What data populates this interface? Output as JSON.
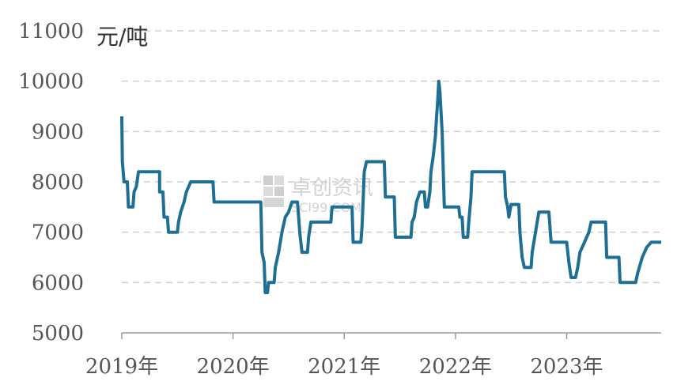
{
  "chart_data": {
    "type": "line",
    "unit_label": "元/吨",
    "watermark": {
      "line1": "卓创资讯",
      "line2": "SCI99.COM"
    },
    "ylim": [
      5000,
      11000
    ],
    "yticks": [
      5000,
      6000,
      7000,
      8000,
      9000,
      10000,
      11000
    ],
    "x_tick_labels": [
      "2019年",
      "2020年",
      "2021年",
      "2022年",
      "2023年"
    ],
    "xlim": [
      2019.0,
      2023.85
    ],
    "grid": true,
    "series": [
      {
        "color": "#1e6f93",
        "points": [
          [
            2019.0,
            9300
          ],
          [
            2019.005,
            8400
          ],
          [
            2019.02,
            8000
          ],
          [
            2019.05,
            8000
          ],
          [
            2019.06,
            7500
          ],
          [
            2019.1,
            7500
          ],
          [
            2019.11,
            7800
          ],
          [
            2019.13,
            7900
          ],
          [
            2019.15,
            8200
          ],
          [
            2019.34,
            8200
          ],
          [
            2019.34,
            7800
          ],
          [
            2019.37,
            7800
          ],
          [
            2019.38,
            7300
          ],
          [
            2019.41,
            7300
          ],
          [
            2019.42,
            7000
          ],
          [
            2019.5,
            7000
          ],
          [
            2019.51,
            7200
          ],
          [
            2019.53,
            7400
          ],
          [
            2019.56,
            7600
          ],
          [
            2019.58,
            7800
          ],
          [
            2019.62,
            8000
          ],
          [
            2019.82,
            8000
          ],
          [
            2019.83,
            7600
          ],
          [
            2020.25,
            7600
          ],
          [
            2020.26,
            6600
          ],
          [
            2020.28,
            6400
          ],
          [
            2020.29,
            5800
          ],
          [
            2020.31,
            5800
          ],
          [
            2020.32,
            6000
          ],
          [
            2020.37,
            6000
          ],
          [
            2020.38,
            6300
          ],
          [
            2020.41,
            6600
          ],
          [
            2020.44,
            7000
          ],
          [
            2020.47,
            7300
          ],
          [
            2020.5,
            7400
          ],
          [
            2020.53,
            7600
          ],
          [
            2020.58,
            7600
          ],
          [
            2020.6,
            7000
          ],
          [
            2020.62,
            6600
          ],
          [
            2020.67,
            6600
          ],
          [
            2020.68,
            6900
          ],
          [
            2020.7,
            7200
          ],
          [
            2020.88,
            7200
          ],
          [
            2020.89,
            7500
          ],
          [
            2021.07,
            7500
          ],
          [
            2021.08,
            6800
          ],
          [
            2021.15,
            6800
          ],
          [
            2021.16,
            7100
          ],
          [
            2021.17,
            7600
          ],
          [
            2021.18,
            8200
          ],
          [
            2021.2,
            8400
          ],
          [
            2021.36,
            8400
          ],
          [
            2021.37,
            7700
          ],
          [
            2021.45,
            7700
          ],
          [
            2021.46,
            6900
          ],
          [
            2021.6,
            6900
          ],
          [
            2021.61,
            7200
          ],
          [
            2021.63,
            7300
          ],
          [
            2021.65,
            7600
          ],
          [
            2021.68,
            7800
          ],
          [
            2021.72,
            7800
          ],
          [
            2021.73,
            7500
          ],
          [
            2021.75,
            7500
          ],
          [
            2021.77,
            7800
          ],
          [
            2021.78,
            8200
          ],
          [
            2021.8,
            8500
          ],
          [
            2021.82,
            8900
          ],
          [
            2021.83,
            9300
          ],
          [
            2021.84,
            9600
          ],
          [
            2021.85,
            10000
          ],
          [
            2021.86,
            9800
          ],
          [
            2021.88,
            9000
          ],
          [
            2021.9,
            7500
          ],
          [
            2022.03,
            7500
          ],
          [
            2022.04,
            7300
          ],
          [
            2022.06,
            7300
          ],
          [
            2022.07,
            6900
          ],
          [
            2022.11,
            6900
          ],
          [
            2022.12,
            7200
          ],
          [
            2022.14,
            7700
          ],
          [
            2022.15,
            8200
          ],
          [
            2022.44,
            8200
          ],
          [
            2022.45,
            7700
          ],
          [
            2022.47,
            7500
          ],
          [
            2022.48,
            7300
          ],
          [
            2022.5,
            7550
          ],
          [
            2022.57,
            7550
          ],
          [
            2022.58,
            7000
          ],
          [
            2022.6,
            6500
          ],
          [
            2022.62,
            6300
          ],
          [
            2022.68,
            6300
          ],
          [
            2022.69,
            6600
          ],
          [
            2022.72,
            7000
          ],
          [
            2022.75,
            7400
          ],
          [
            2022.84,
            7400
          ],
          [
            2022.86,
            6800
          ],
          [
            2023.0,
            6800
          ],
          [
            2023.02,
            6400
          ],
          [
            2023.04,
            6100
          ],
          [
            2023.08,
            6100
          ],
          [
            2023.1,
            6300
          ],
          [
            2023.12,
            6600
          ],
          [
            2023.16,
            6800
          ],
          [
            2023.2,
            7000
          ],
          [
            2023.22,
            7200
          ],
          [
            2023.35,
            7200
          ],
          [
            2023.36,
            6500
          ],
          [
            2023.47,
            6500
          ],
          [
            2023.48,
            6000
          ],
          [
            2023.62,
            6000
          ],
          [
            2023.64,
            6200
          ],
          [
            2023.68,
            6500
          ],
          [
            2023.72,
            6700
          ],
          [
            2023.76,
            6800
          ],
          [
            2023.85,
            6800
          ]
        ]
      }
    ]
  }
}
